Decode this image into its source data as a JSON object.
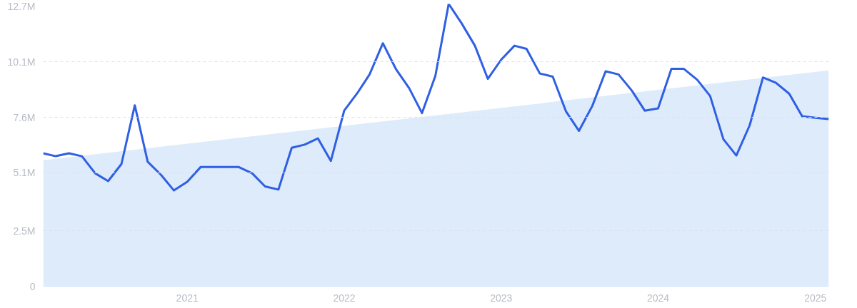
{
  "chart_data": {
    "type": "line",
    "x": [
      "2020-02",
      "2020-03",
      "2020-04",
      "2020-05",
      "2020-06",
      "2020-07",
      "2020-08",
      "2020-09",
      "2020-10",
      "2020-11",
      "2020-12",
      "2021-01",
      "2021-02",
      "2021-03",
      "2021-04",
      "2021-05",
      "2021-06",
      "2021-07",
      "2021-08",
      "2021-09",
      "2021-10",
      "2021-11",
      "2021-12",
      "2022-01",
      "2022-02",
      "2022-03",
      "2022-04",
      "2022-05",
      "2022-06",
      "2022-07",
      "2022-08",
      "2022-09",
      "2022-10",
      "2022-11",
      "2022-12",
      "2023-01",
      "2023-02",
      "2023-03",
      "2023-04",
      "2023-05",
      "2023-06",
      "2023-07",
      "2023-08",
      "2023-09",
      "2023-10",
      "2023-11",
      "2023-12",
      "2024-01",
      "2024-02",
      "2024-03",
      "2024-04",
      "2024-05",
      "2024-06",
      "2024-07",
      "2024-08",
      "2024-09",
      "2024-10",
      "2024-11",
      "2024-12",
      "2025-01",
      "2025-02"
    ],
    "series": [
      {
        "type": "area",
        "x": [
          "2020-02",
          "2025-02"
        ],
        "values": [
          5.67,
          9.71
        ],
        "color": "#deebfa"
      },
      {
        "color": "#2f5fe3",
        "values": [
          5.98,
          5.85,
          5.98,
          5.85,
          5.08,
          4.73,
          5.5,
          8.14,
          5.6,
          5.01,
          4.31,
          4.7,
          5.36,
          5.36,
          5.36,
          5.36,
          5.08,
          4.49,
          4.35,
          6.23,
          6.37,
          6.65,
          5.64,
          7.9,
          8.7,
          9.53,
          10.93,
          9.78,
          8.91,
          7.79,
          9.46,
          12.7,
          11.83,
          10.82,
          9.33,
          10.19,
          10.82,
          10.68,
          9.57,
          9.43,
          7.86,
          6.99,
          8.11,
          9.67,
          9.53,
          8.8,
          7.9,
          8.0,
          9.78,
          9.78,
          9.29,
          8.56,
          6.61,
          5.88,
          7.24,
          9.39,
          9.15,
          8.66,
          7.65,
          7.58,
          7.52
        ]
      }
    ],
    "xlim": [
      "2020-02",
      "2025-02"
    ],
    "xticks": [
      "2021",
      "2022",
      "2023",
      "2024",
      "2025"
    ],
    "ylim": [
      0,
      12.7
    ],
    "yticks": [
      0,
      {
        "value": 2.5,
        "label": "2.5M"
      },
      {
        "value": 5.1,
        "label": "5.1M"
      },
      {
        "value": 7.6,
        "label": "7.6M"
      },
      {
        "value": 10.1,
        "label": "10.1M"
      },
      {
        "value": 12.7,
        "label": "12.7M"
      }
    ],
    "grid": "y",
    "line_style": "solid",
    "marker": "none"
  }
}
